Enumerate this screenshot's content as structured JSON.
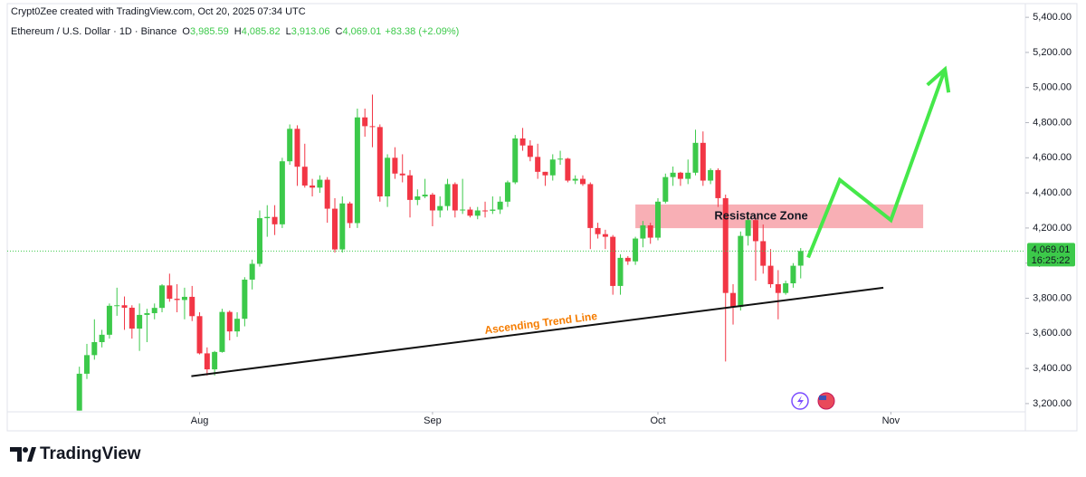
{
  "header": "Crypt0Zee created with TradingView.com, Oct 20, 2025 07:34 UTC",
  "legend": {
    "name": "Ethereum / U.S. Dollar · 1D · Binance",
    "items": [
      {
        "label": "O",
        "value": "3,985.59"
      },
      {
        "label": "H",
        "value": "4,085.82"
      },
      {
        "label": "L",
        "value": "3,913.06"
      },
      {
        "label": "C",
        "value": "4,069.01"
      }
    ],
    "change": "+83.38 (+2.09%)"
  },
  "logo": "TradingView",
  "chart_data": {
    "type": "candlestick",
    "up_color": "#3cc94a",
    "down_color": "#f23645",
    "grid": false,
    "open": [
      3160,
      3370,
      3476,
      3550,
      3592,
      3757,
      3760,
      3746,
      3627,
      3705,
      3715,
      3745,
      3873,
      3797,
      3790,
      3808,
      3698,
      3486,
      3395,
      3494,
      3722,
      3611,
      3683,
      3906,
      3996,
      4256,
      4263,
      4221,
      4580,
      4765,
      4549,
      4442,
      4430,
      4475,
      4310,
      4078,
      4340,
      4228,
      4830,
      4780,
      4775,
      4380,
      4600,
      4510,
      4500,
      4360,
      4380,
      4390,
      4300,
      4325,
      4450,
      4300,
      4305,
      4270,
      4300,
      4298,
      4305,
      4350,
      4460,
      4710,
      4670,
      4605,
      4520,
      4500,
      4590,
      4595,
      4470,
      4480,
      4450,
      4200,
      4165,
      4150,
      3870,
      4030,
      4010,
      4140,
      4215,
      4145,
      4350,
      4490,
      4515,
      4480,
      4515,
      4685,
      4470,
      4530,
      4370,
      3830,
      3750,
      4155,
      4245,
      4125,
      3985,
      3880,
      3830,
      3885,
      3985.59
    ],
    "high": [
      3410,
      3540,
      3680,
      3620,
      3770,
      3860,
      3810,
      3760,
      3770,
      3740,
      3770,
      3880,
      3940,
      3880,
      3860,
      3870,
      3720,
      3520,
      3500,
      3740,
      3730,
      3720,
      3920,
      4020,
      4300,
      4330,
      4330,
      4600,
      4790,
      4785,
      4680,
      4480,
      4500,
      4490,
      4370,
      4380,
      4350,
      4880,
      4880,
      4960,
      4790,
      4620,
      4660,
      4620,
      4530,
      4420,
      4480,
      4400,
      4380,
      4480,
      4460,
      4480,
      4320,
      4320,
      4350,
      4380,
      4380,
      4470,
      4730,
      4770,
      4700,
      4680,
      4520,
      4620,
      4640,
      4600,
      4500,
      4500,
      4460,
      4230,
      4190,
      4160,
      4050,
      4040,
      4150,
      4240,
      4230,
      4370,
      4510,
      4550,
      4520,
      4590,
      4760,
      4750,
      4540,
      4540,
      4390,
      3880,
      4180,
      4290,
      4260,
      4220,
      4080,
      3960,
      3900,
      4000,
      4085.82
    ],
    "low": [
      3160,
      3340,
      3450,
      3520,
      3570,
      3700,
      3620,
      3570,
      3500,
      3550,
      3680,
      3720,
      3780,
      3720,
      3680,
      3670,
      3480,
      3360,
      3360,
      3490,
      3560,
      3580,
      3640,
      3850,
      3980,
      4150,
      4160,
      4200,
      4560,
      4440,
      4430,
      4380,
      4400,
      4230,
      4060,
      4060,
      4200,
      4200,
      4720,
      4660,
      4350,
      4320,
      4480,
      4460,
      4260,
      4330,
      4370,
      4210,
      4260,
      4300,
      4260,
      4280,
      4260,
      4250,
      4260,
      4280,
      4280,
      4320,
      4450,
      4640,
      4580,
      4480,
      4440,
      4470,
      4560,
      4460,
      4450,
      4440,
      4080,
      4140,
      4080,
      3820,
      3820,
      3990,
      3990,
      4090,
      4110,
      4130,
      4340,
      4440,
      4440,
      4450,
      4500,
      4440,
      4450,
      4320,
      3440,
      3650,
      3730,
      4100,
      3900,
      3940,
      3860,
      3680,
      3820,
      3860,
      3913.06
    ],
    "close": [
      3370,
      3476,
      3550,
      3592,
      3757,
      3760,
      3746,
      3627,
      3705,
      3715,
      3745,
      3873,
      3797,
      3790,
      3808,
      3698,
      3486,
      3395,
      3494,
      3722,
      3611,
      3683,
      3906,
      3996,
      4256,
      4263,
      4221,
      4580,
      4765,
      4549,
      4442,
      4430,
      4475,
      4310,
      4078,
      4340,
      4228,
      4830,
      4780,
      4775,
      4380,
      4600,
      4510,
      4500,
      4360,
      4380,
      4390,
      4300,
      4325,
      4450,
      4300,
      4305,
      4270,
      4300,
      4298,
      4305,
      4350,
      4460,
      4710,
      4670,
      4605,
      4520,
      4500,
      4590,
      4595,
      4470,
      4480,
      4450,
      4200,
      4165,
      4150,
      3870,
      4030,
      4010,
      4140,
      4215,
      4145,
      4350,
      4490,
      4515,
      4480,
      4515,
      4685,
      4470,
      4530,
      4370,
      3830,
      3750,
      4155,
      4245,
      4125,
      3985,
      3880,
      3830,
      3885,
      3985,
      4069.01
    ],
    "xlim": [
      -9.6,
      125.9
    ],
    "xticks": [
      {
        "value": 16,
        "label": "Aug"
      },
      {
        "value": 47,
        "label": "Sep"
      },
      {
        "value": 77,
        "label": "Oct"
      },
      {
        "value": 108,
        "label": "Nov"
      }
    ],
    "ylim": [
      3153,
      5478
    ],
    "yticks": [
      {
        "value": 3200,
        "label": "3,200.00"
      },
      {
        "value": 3400,
        "label": "3,400.00"
      },
      {
        "value": 3600,
        "label": "3,600.00"
      },
      {
        "value": 3800,
        "label": "3,800.00"
      },
      {
        "value": 4000,
        "label": "4,000.00"
      },
      {
        "value": 4200,
        "label": "4,200.00"
      },
      {
        "value": 4400,
        "label": "4,400.00"
      },
      {
        "value": 4600,
        "label": "4,600.00"
      },
      {
        "value": 4800,
        "label": "4,800.00"
      },
      {
        "value": 5000,
        "label": "5,000.00"
      },
      {
        "value": 5200,
        "label": "5,200.00"
      },
      {
        "value": 5400,
        "label": "5,400.00"
      }
    ],
    "last_price": {
      "label": "4,069.01",
      "countdown": "16:25:22"
    },
    "resistance_zone": {
      "label": "Resistance Zone",
      "x": [
        74,
        112.3
      ],
      "y": [
        4199,
        4334
      ],
      "color": "#f7a1a8"
    },
    "trend_line": {
      "label": "Ascending Trend Line",
      "x": [
        14.9,
        107
      ],
      "y": [
        3356,
        3860
      ],
      "color": "#111111",
      "label_color": "#f57c00"
    },
    "projection": {
      "x": [
        97,
        101.2,
        108,
        115.2
      ],
      "y": [
        4032,
        4474,
        4245,
        5104
      ],
      "color": "#45e84a"
    }
  }
}
